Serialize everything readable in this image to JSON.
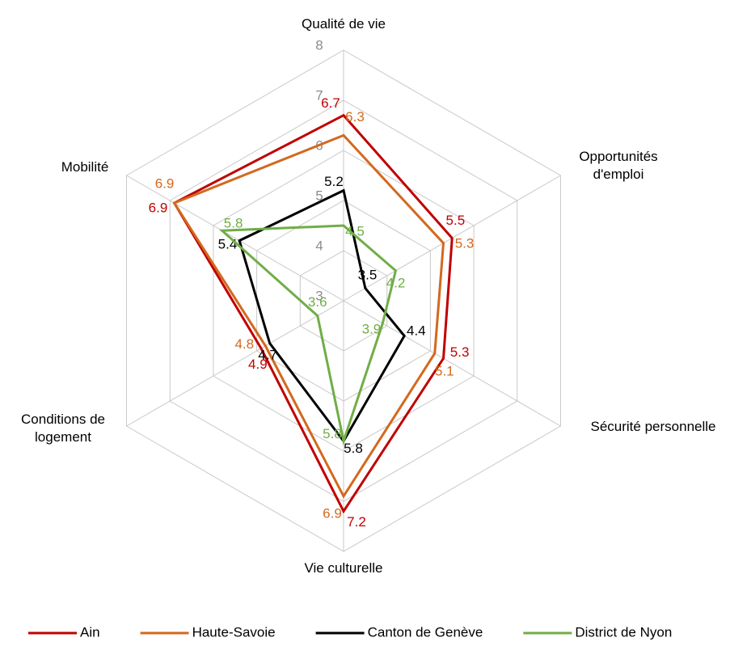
{
  "chart_data": {
    "type": "radar",
    "categories": [
      "Qualité de vie",
      "Opportunités d'emploi",
      "Sécurité personnelle",
      "Vie culturelle",
      "Conditions de logement",
      "Mobilité"
    ],
    "rlim": [
      3,
      8
    ],
    "rticks": [
      3,
      4,
      5,
      6,
      7,
      8
    ],
    "grid": true,
    "legend": "bottom",
    "series": [
      {
        "name": "Ain",
        "color": "#c00000",
        "values": [
          6.7,
          5.5,
          5.3,
          7.2,
          4.9,
          6.9
        ]
      },
      {
        "name": "Haute-Savoie",
        "color": "#d2691e",
        "values": [
          6.3,
          5.3,
          5.1,
          6.9,
          4.8,
          6.9
        ]
      },
      {
        "name": "Canton de Genève",
        "color": "#000000",
        "values": [
          5.2,
          3.5,
          4.4,
          5.8,
          4.7,
          5.4
        ]
      },
      {
        "name": "District de Nyon",
        "color": "#70ad47",
        "values": [
          4.5,
          4.2,
          3.9,
          5.8,
          3.6,
          5.8
        ]
      }
    ]
  }
}
